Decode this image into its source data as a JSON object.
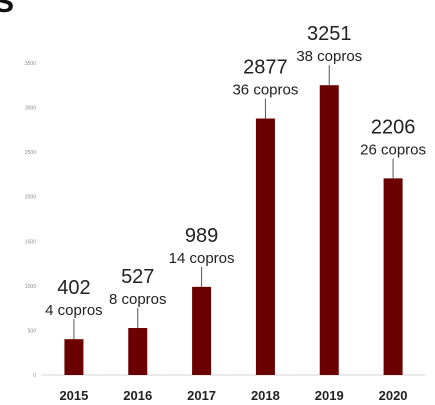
{
  "corner_glyph": "S",
  "chart_data": {
    "type": "bar",
    "categories": [
      "2015",
      "2016",
      "2017",
      "2018",
      "2019",
      "2020"
    ],
    "values": [
      402,
      527,
      989,
      2877,
      3251,
      2206
    ],
    "value_labels": [
      "402",
      "527",
      "989",
      "2877",
      "3251",
      "2206"
    ],
    "annotations": [
      "4 copros",
      "8 copros",
      "14 copros",
      "36 copros",
      "38 copros",
      "26 copros"
    ],
    "y_ticks": [
      0,
      500,
      1000,
      1500,
      2000,
      2500,
      3000,
      3500
    ],
    "ylim": [
      0,
      3500
    ],
    "grid": false,
    "title": "",
    "xlabel": "",
    "ylabel": "",
    "bar_color": "#6b0000"
  }
}
